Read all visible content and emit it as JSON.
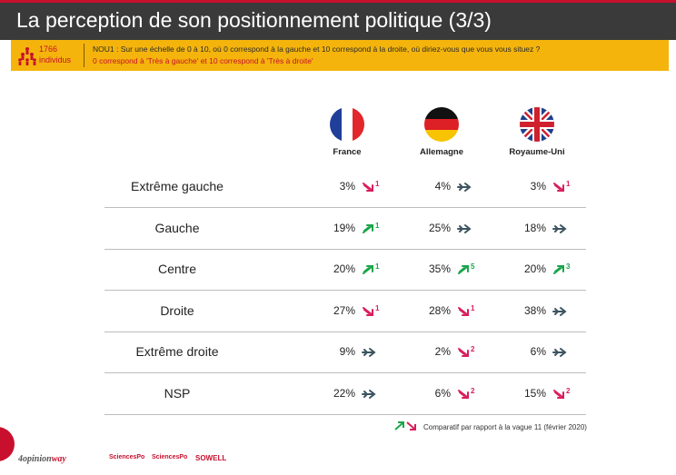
{
  "title": "La perception de son positionnement politique (3/3)",
  "sample": {
    "count": "1766",
    "label": "individus"
  },
  "question": {
    "text": "NOU1 : Sur une échelle de 0 à 10, où 0 correspond à la gauche et 10 correspond à la droite, où diriez-vous que vous vous situez ?",
    "note": "0 correspond à 'Très à gauche' et 10 correspond à 'Très à droite'"
  },
  "countries": [
    {
      "name": "France",
      "flag": "france-flag-icon"
    },
    {
      "name": "Allemagne",
      "flag": "germany-flag-icon"
    },
    {
      "name": "Royaume-Uni",
      "flag": "uk-flag-icon"
    }
  ],
  "rows": [
    {
      "label": "Extrême gauche",
      "cells": [
        {
          "value": "3%",
          "trend": "down",
          "diff": "1"
        },
        {
          "value": "4%",
          "trend": "flat",
          "diff": ""
        },
        {
          "value": "3%",
          "trend": "down",
          "diff": "1"
        }
      ]
    },
    {
      "label": "Gauche",
      "cells": [
        {
          "value": "19%",
          "trend": "up",
          "diff": "1"
        },
        {
          "value": "25%",
          "trend": "flat",
          "diff": ""
        },
        {
          "value": "18%",
          "trend": "flat",
          "diff": ""
        }
      ]
    },
    {
      "label": "Centre",
      "cells": [
        {
          "value": "20%",
          "trend": "up",
          "diff": "1"
        },
        {
          "value": "35%",
          "trend": "up",
          "diff": "5"
        },
        {
          "value": "20%",
          "trend": "up",
          "diff": "3"
        }
      ]
    },
    {
      "label": "Droite",
      "cells": [
        {
          "value": "27%",
          "trend": "down",
          "diff": "1"
        },
        {
          "value": "28%",
          "trend": "down",
          "diff": "1"
        },
        {
          "value": "38%",
          "trend": "flat",
          "diff": ""
        }
      ]
    },
    {
      "label": "Extrême droite",
      "cells": [
        {
          "value": "9%",
          "trend": "flat",
          "diff": ""
        },
        {
          "value": "2%",
          "trend": "down",
          "diff": "2"
        },
        {
          "value": "6%",
          "trend": "flat",
          "diff": ""
        }
      ]
    },
    {
      "label": "NSP",
      "cells": [
        {
          "value": "22%",
          "trend": "flat",
          "diff": ""
        },
        {
          "value": "6%",
          "trend": "down",
          "diff": "2"
        },
        {
          "value": "15%",
          "trend": "down",
          "diff": "2"
        }
      ]
    }
  ],
  "legend": "Comparatif par rapport à la vague 11 (février 2020)",
  "logos": {
    "opinionway_pre": "4",
    "opinionway_main": "opinion",
    "opinionway_post": "way",
    "sciencespo1": "SciencesPo",
    "sciencespo2": "SciencesPo",
    "sowell": "SOWELL"
  },
  "colors": {
    "up": "#1aa54a",
    "down": "#d81e5b",
    "flat": "#3d5560",
    "accent": "#c8102e",
    "banner": "#f4b40c"
  }
}
